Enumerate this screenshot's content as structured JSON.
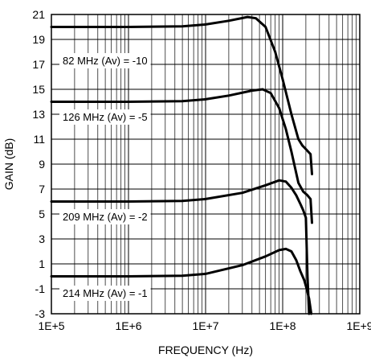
{
  "chart_data": {
    "type": "line",
    "title": "",
    "xlabel": "FREQUENCY (Hz)",
    "ylabel": "GAIN (dB)",
    "x_scale": "log",
    "xlim": [
      100000,
      1000000000
    ],
    "ylim": [
      -3,
      21
    ],
    "x_tick_labels": [
      "1E+5",
      "1E+6",
      "1E+7",
      "1E+8",
      "1E+9"
    ],
    "y_ticks": [
      -3,
      -1,
      1,
      3,
      5,
      7,
      9,
      11,
      13,
      15,
      17,
      19,
      21
    ],
    "grid": true,
    "legend": "none",
    "series": [
      {
        "annotation": "82 MHz (Av) = -10",
        "points": [
          [
            100000,
            20
          ],
          [
            1000000,
            20
          ],
          [
            5000000,
            20.05
          ],
          [
            10000000,
            20.2
          ],
          [
            20000000,
            20.5
          ],
          [
            35000000,
            20.8
          ],
          [
            45000000,
            20.7
          ],
          [
            60000000,
            20.0
          ],
          [
            80000000,
            18.0
          ],
          [
            100000000,
            15.8
          ],
          [
            130000000,
            13.0
          ],
          [
            160000000,
            11.0
          ],
          [
            180000000,
            10.5
          ],
          [
            200000000,
            10.2
          ],
          [
            230000000,
            9.8
          ],
          [
            240000000,
            8.2
          ]
        ]
      },
      {
        "annotation": "126 MHz (Av) = -5",
        "points": [
          [
            100000,
            14
          ],
          [
            1000000,
            14
          ],
          [
            5000000,
            14.05
          ],
          [
            10000000,
            14.2
          ],
          [
            20000000,
            14.5
          ],
          [
            40000000,
            14.9
          ],
          [
            55000000,
            15.0
          ],
          [
            70000000,
            14.7
          ],
          [
            90000000,
            13.5
          ],
          [
            110000000,
            11.8
          ],
          [
            130000000,
            10.0
          ],
          [
            160000000,
            7.5
          ],
          [
            185000000,
            6.8
          ],
          [
            210000000,
            6.5
          ],
          [
            230000000,
            6.2
          ],
          [
            240000000,
            4.3
          ]
        ]
      },
      {
        "annotation": "209 MHz (Av) = -2",
        "points": [
          [
            100000,
            6
          ],
          [
            1000000,
            6
          ],
          [
            5000000,
            6.05
          ],
          [
            10000000,
            6.2
          ],
          [
            30000000,
            6.7
          ],
          [
            60000000,
            7.3
          ],
          [
            90000000,
            7.7
          ],
          [
            110000000,
            7.6
          ],
          [
            130000000,
            7.1
          ],
          [
            150000000,
            6.5
          ],
          [
            170000000,
            5.8
          ],
          [
            185000000,
            5.3
          ],
          [
            200000000,
            4.7
          ],
          [
            210000000,
            0
          ],
          [
            220000000,
            -3
          ]
        ]
      },
      {
        "annotation": "214 MHz (Av) = -1",
        "points": [
          [
            100000,
            0
          ],
          [
            1000000,
            0
          ],
          [
            5000000,
            0.05
          ],
          [
            10000000,
            0.2
          ],
          [
            30000000,
            0.9
          ],
          [
            60000000,
            1.6
          ],
          [
            90000000,
            2.1
          ],
          [
            110000000,
            2.2
          ],
          [
            130000000,
            2.0
          ],
          [
            150000000,
            1.3
          ],
          [
            170000000,
            0.4
          ],
          [
            190000000,
            -0.3
          ],
          [
            205000000,
            -1.0
          ],
          [
            220000000,
            -1.8
          ],
          [
            235000000,
            -3
          ]
        ]
      }
    ]
  }
}
